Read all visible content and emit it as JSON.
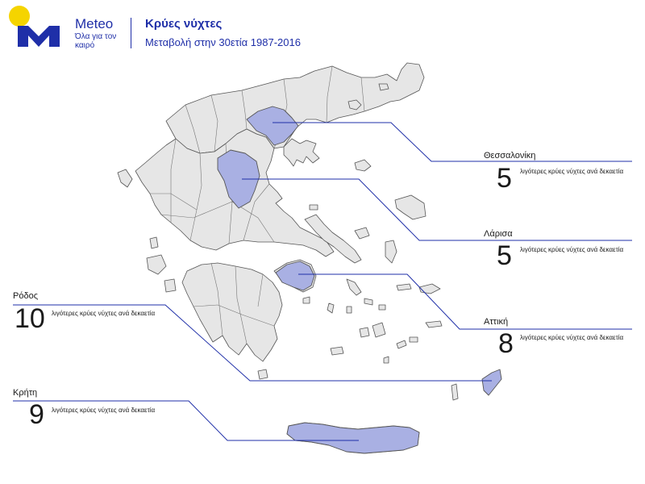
{
  "brand": {
    "name": "Meteo",
    "tagline": "Όλα για τον καιρό",
    "logo_colors": {
      "primary": "#1f2fa8",
      "sun": "#f5d400"
    }
  },
  "title": "Κρύες νύχτες",
  "subtitle": "Μεταβολή στην 30ετία 1987-2016",
  "colors": {
    "highlight": "#a9b0e3",
    "land": "#e6e6e6",
    "border": "#555555",
    "leader": "#1f2fa8"
  },
  "callouts": [
    {
      "name": "Θεσσαλονίκη",
      "value": "5",
      "text": "λιγότερες κρύες νύχτες ανά δεκαετία"
    },
    {
      "name": "Λάρισα",
      "value": "5",
      "text": "λιγότερες κρύες νύχτες ανά δεκαετία"
    },
    {
      "name": "Αττική",
      "value": "8",
      "text": "λιγότερες κρύες νύχτες ανά δεκαετία"
    },
    {
      "name": "Ρόδος",
      "value": "10",
      "text": "λιγότερες κρύες νύχτες ανά δεκαετία"
    },
    {
      "name": "Κρήτη",
      "value": "9",
      "text": "λιγότερες κρύες νύχτες ανά δεκαετία"
    }
  ]
}
